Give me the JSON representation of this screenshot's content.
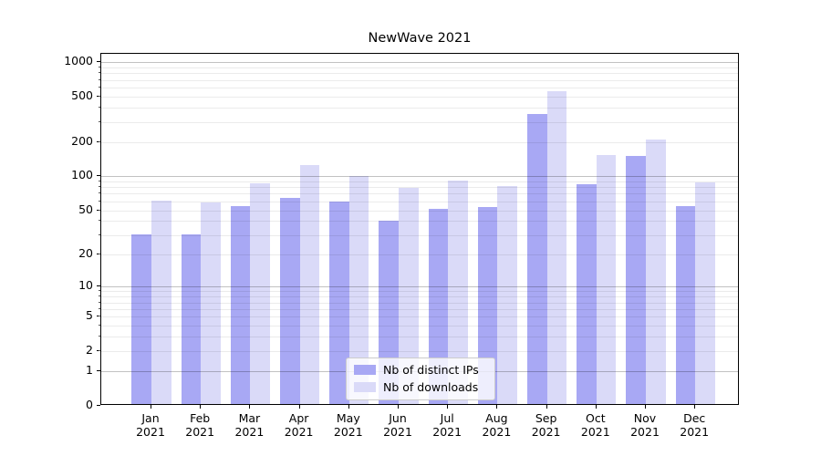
{
  "title": "NewWave 2021",
  "colors": {
    "distinct_ips": "#a8a8f4",
    "downloads": "#dadaf8",
    "grid_major": "rgba(0,0,0,0.24)",
    "grid_minor": "rgba(0,0,0,0.08)",
    "spine": "#000000",
    "legend_border": "#cccccc"
  },
  "legend": {
    "items": [
      {
        "label": "Nb of distinct IPs",
        "series_key": "distinct_ips"
      },
      {
        "label": "Nb of downloads",
        "series_key": "downloads"
      }
    ]
  },
  "chart_data": {
    "type": "bar",
    "title": "NewWave 2021",
    "categories": [
      "Jan",
      "Feb",
      "Mar",
      "Apr",
      "May",
      "Jun",
      "Jul",
      "Aug",
      "Sep",
      "Oct",
      "Nov",
      "Dec"
    ],
    "category_year": "2021",
    "series": [
      {
        "name": "Nb of distinct IPs",
        "color": "#a8a8f4",
        "values": [
          29,
          29,
          52,
          62,
          57,
          39,
          50,
          51,
          340,
          82,
          144,
          52
        ]
      },
      {
        "name": "Nb of downloads",
        "color": "#dadaf8",
        "values": [
          59,
          56,
          84,
          120,
          97,
          76,
          88,
          79,
          540,
          147,
          203,
          85
        ]
      }
    ],
    "y_scale": "log1p",
    "y_ticks": [
      1000,
      500,
      200,
      100,
      50,
      20,
      10,
      5,
      2,
      1,
      0
    ],
    "y_major_gridlines": [
      1,
      10,
      100,
      1000
    ],
    "y_minor_gridline_mantissas": [
      2,
      3,
      4,
      5,
      6,
      7,
      8,
      9
    ],
    "ylim": [
      0,
      1180
    ],
    "grid": "both",
    "legend_position": "lower-center-inside",
    "xlabel": "",
    "ylabel": ""
  }
}
